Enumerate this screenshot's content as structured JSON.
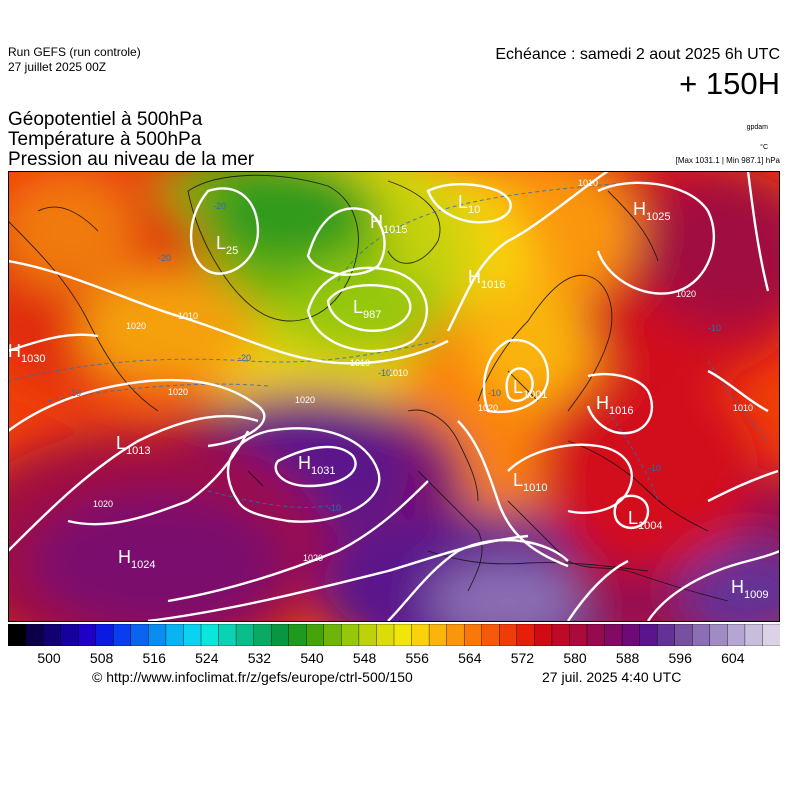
{
  "header": {
    "run_line1": "Run GEFS (run controle)",
    "run_line2": "27 juillet 2025 00Z",
    "echeance": "Echéance : samedi 2 aout 2025 6h UTC",
    "hour": "+ 150H"
  },
  "parameters": {
    "line1": "Géopotentiel à 500hPa",
    "line2": "Température à 500hPa",
    "line3": "Pression au niveau de la mer",
    "unit1": "gpdam",
    "unit2": "°C",
    "unit3": "[Max 1031.1 | Min 987.1] hPa"
  },
  "map": {
    "pressure_centers": [
      {
        "type": "H",
        "value": "1030"
      },
      {
        "type": "L",
        "value": "1013"
      },
      {
        "type": "H",
        "value": "1031"
      },
      {
        "type": "H",
        "value": "1024"
      },
      {
        "type": "L",
        "value": "10"
      },
      {
        "type": "H",
        "value": "1015"
      },
      {
        "type": "L",
        "value": "987"
      },
      {
        "type": "L",
        "value": "25"
      },
      {
        "type": "H",
        "value": "1016"
      },
      {
        "type": "H",
        "value": "1025"
      },
      {
        "type": "H",
        "value": "1016"
      },
      {
        "type": "L",
        "value": "1010"
      },
      {
        "type": "L",
        "value": "1004"
      },
      {
        "type": "H",
        "value": "1009"
      },
      {
        "type": "L",
        "value": "1001"
      }
    ],
    "isobar_labels": [
      "1020",
      "1020",
      "1020",
      "1020",
      "1020",
      "1010",
      "1010",
      "1010",
      "1020",
      "1010",
      "1010",
      "1020"
    ],
    "isotherm_labels": [
      "-20",
      "-20",
      "-20",
      "-10",
      "-10",
      "-10",
      "-10",
      "-10",
      "-10"
    ]
  },
  "colorbar": {
    "colors": [
      "#000000",
      "#0b0048",
      "#120072",
      "#16009e",
      "#1e00c8",
      "#0a1ae0",
      "#0a3cf0",
      "#0a64f0",
      "#0a8cf0",
      "#0ab4f0",
      "#0ad2f0",
      "#0ae6dc",
      "#0ad2b4",
      "#0abe8c",
      "#0aaa64",
      "#0a9640",
      "#1e9a1e",
      "#46a40a",
      "#6eb40a",
      "#96c80a",
      "#bed20a",
      "#dcdc0a",
      "#f0e60a",
      "#fad20a",
      "#fab40a",
      "#fa960a",
      "#fa780a",
      "#f55a0a",
      "#f03c0a",
      "#e61e0a",
      "#d20a14",
      "#be0a28",
      "#aa0a3c",
      "#960a50",
      "#820a64",
      "#6e0a78",
      "#5a148c",
      "#643296",
      "#7850a0",
      "#8c6eb4",
      "#a08cc3",
      "#b4a5d2",
      "#c8bedc",
      "#dcd2e6"
    ],
    "ticks": [
      "500",
      "508",
      "516",
      "524",
      "532",
      "540",
      "548",
      "556",
      "564",
      "572",
      "580",
      "588",
      "596",
      "604"
    ]
  },
  "footer": {
    "source": "© http://www.infoclimat.fr/z/gefs/europe/ctrl-500/150",
    "date": "27 juil. 2025  4:40 UTC"
  }
}
